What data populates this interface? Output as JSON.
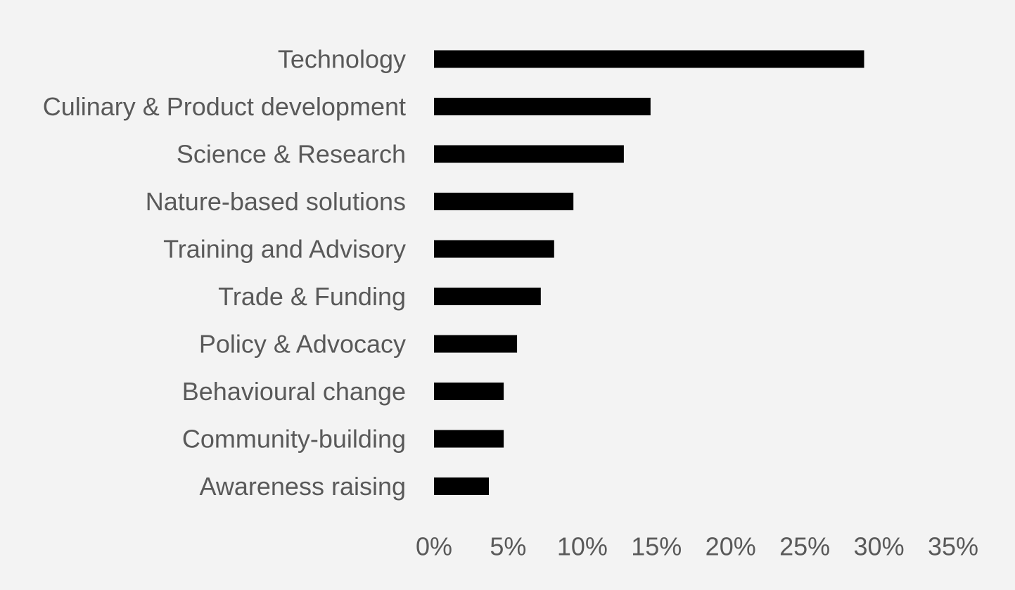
{
  "chart_data": {
    "type": "bar",
    "orientation": "horizontal",
    "categories": [
      "Technology",
      "Culinary & Product development",
      "Science & Research",
      "Nature-based solutions",
      "Training and Advisory",
      "Trade & Funding",
      "Policy & Advocacy",
      "Behavioural change",
      "Community-building",
      "Awareness raising"
    ],
    "values": [
      29.0,
      14.6,
      12.8,
      9.4,
      8.1,
      7.2,
      5.6,
      4.7,
      4.7,
      3.7
    ],
    "unit": "%",
    "xlim": [
      0,
      35
    ],
    "x_ticks": [
      0,
      5,
      10,
      15,
      20,
      25,
      30,
      35
    ],
    "x_tick_labels": [
      "0%",
      "5%",
      "10%",
      "15%",
      "20%",
      "25%",
      "30%",
      "35%"
    ],
    "title": "",
    "xlabel": "",
    "ylabel": "",
    "grid": false,
    "legend": "none",
    "colors": {
      "bar": "#000000",
      "text": "#595959",
      "background": "#f3f3f3"
    }
  }
}
